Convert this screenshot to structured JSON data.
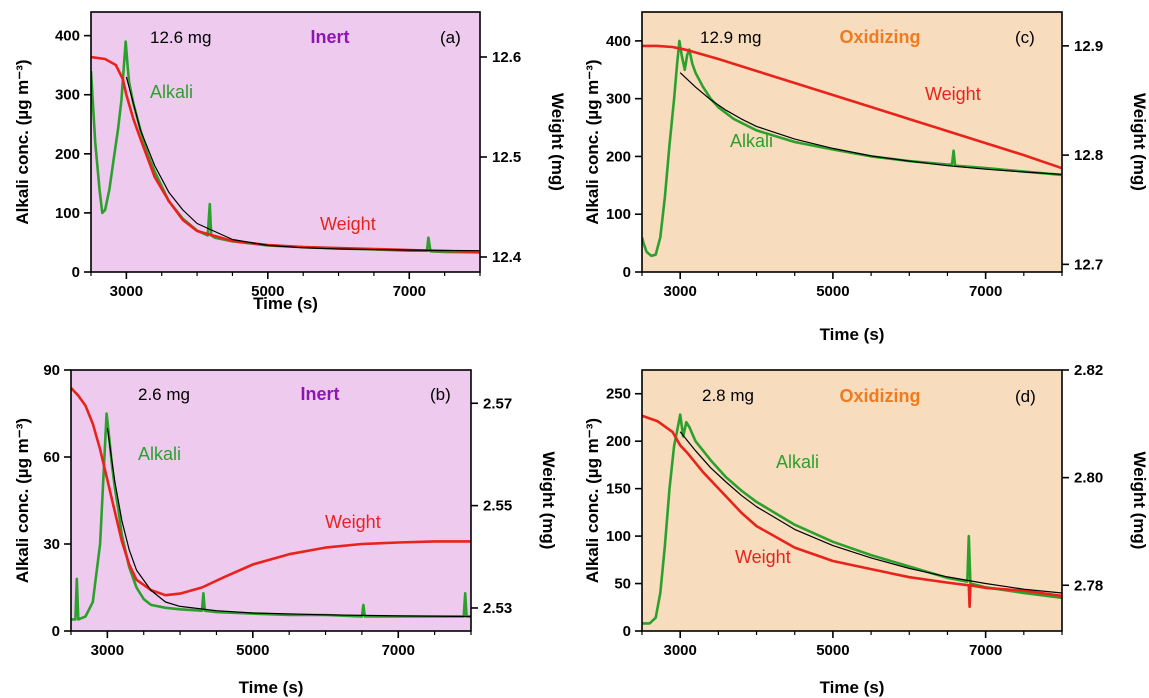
{
  "colors": {
    "inert_bg": "#eecbee",
    "oxidizing_bg": "#f8dcbe",
    "inert_text": "#8e15b3",
    "oxidizing_text": "#f07b1f",
    "alkali": "#2ca02c",
    "weight": "#e8231c",
    "fit": "#000000"
  },
  "chart_data": [
    {
      "type": "line",
      "panel": "(a)",
      "mass": "12.6 mg",
      "atmosphere": "Inert",
      "xlabel": "Time (s)",
      "ylabel": "Alkali conc. (µg m⁻³)",
      "y2label": "Weight (mg)",
      "xlim": [
        2500,
        8000
      ],
      "ylim": [
        0,
        440
      ],
      "y2lim": [
        12.385,
        12.645
      ],
      "xticks": [
        3000,
        5000,
        7000
      ],
      "yticks": [
        0,
        100,
        200,
        300,
        400
      ],
      "y2ticks": [
        12.4,
        12.5,
        12.6
      ],
      "series": [
        {
          "name": "Alkali",
          "axis": "left",
          "kind": "alkali",
          "x": [
            2500,
            2560,
            2620,
            2660,
            2700,
            2760,
            2820,
            2880,
            2930,
            2960,
            2990,
            3020,
            3040,
            3100,
            3200,
            3300,
            3400,
            3500,
            3600,
            3800,
            4000,
            4150,
            4180,
            4200,
            4250,
            4500,
            5000,
            5500,
            6000,
            6500,
            7000,
            7250,
            7270,
            7300,
            7500,
            8000
          ],
          "y": [
            340,
            220,
            140,
            100,
            105,
            140,
            190,
            240,
            290,
            340,
            390,
            345,
            320,
            285,
            240,
            200,
            170,
            145,
            120,
            90,
            70,
            62,
            115,
            62,
            58,
            52,
            45,
            42,
            40,
            38,
            36,
            36,
            58,
            35,
            34,
            33
          ]
        },
        {
          "name": "Weight",
          "axis": "right",
          "kind": "weight",
          "x": [
            2500,
            2700,
            2850,
            2950,
            3000,
            3100,
            3200,
            3400,
            3600,
            3800,
            4000,
            4500,
            5000,
            5500,
            6000,
            6500,
            7000,
            7500,
            8000
          ],
          "y": [
            12.6,
            12.598,
            12.592,
            12.578,
            12.562,
            12.538,
            12.518,
            12.48,
            12.456,
            12.437,
            12.426,
            12.416,
            12.412,
            12.41,
            12.409,
            12.408,
            12.407,
            12.406,
            12.405
          ]
        },
        {
          "axis": "left",
          "kind": "fit",
          "x": [
            3000,
            3200,
            3400,
            3600,
            3800,
            4000,
            4500,
            5000,
            5500,
            6000,
            7000,
            8000
          ],
          "y": [
            330,
            240,
            180,
            135,
            105,
            82,
            55,
            45,
            41,
            39,
            37,
            36
          ]
        }
      ]
    },
    {
      "type": "line",
      "panel": "(b)",
      "mass": "2.6 mg",
      "atmosphere": "Inert",
      "xlabel": "Time (s)",
      "ylabel": "Alkali conc. (µg m⁻³)",
      "y2label": "Weight (mg)",
      "xlim": [
        2500,
        8000
      ],
      "ylim": [
        0,
        90
      ],
      "y2lim": [
        2.5255,
        2.5765
      ],
      "xticks": [
        3000,
        5000,
        7000
      ],
      "yticks": [
        0,
        30,
        60,
        90
      ],
      "y2ticks": [
        2.53,
        2.55,
        2.57
      ],
      "series": [
        {
          "name": "Alkali",
          "axis": "left",
          "kind": "alkali",
          "x": [
            2500,
            2560,
            2580,
            2600,
            2700,
            2800,
            2900,
            2950,
            2990,
            3020,
            3060,
            3100,
            3150,
            3200,
            3300,
            3400,
            3500,
            3600,
            3800,
            4000,
            4300,
            4320,
            4340,
            4500,
            5000,
            5500,
            6000,
            6500,
            6520,
            6540,
            7000,
            7500,
            7900,
            7920,
            7940,
            8000
          ],
          "y": [
            4,
            4,
            18,
            4,
            5,
            10,
            30,
            55,
            75,
            68,
            58,
            50,
            42,
            33,
            22,
            15,
            11,
            9,
            8,
            7.5,
            7,
            13,
            7,
            6.5,
            6,
            5.5,
            5.5,
            5,
            9,
            5,
            5,
            5,
            5,
            13,
            5,
            5
          ]
        },
        {
          "name": "Weight",
          "axis": "right",
          "kind": "weight",
          "x": [
            2500,
            2600,
            2700,
            2800,
            2900,
            3000,
            3100,
            3200,
            3300,
            3400,
            3600,
            3800,
            4000,
            4300,
            4600,
            5000,
            5500,
            6000,
            6500,
            7000,
            7500,
            8000
          ],
          "y": [
            2.573,
            2.5715,
            2.5695,
            2.566,
            2.561,
            2.555,
            2.549,
            2.543,
            2.5385,
            2.5355,
            2.5335,
            2.5325,
            2.5328,
            2.534,
            2.536,
            2.5385,
            2.5405,
            2.5418,
            2.5425,
            2.5428,
            2.543,
            2.543
          ]
        },
        {
          "axis": "left",
          "kind": "fit",
          "x": [
            3000,
            3100,
            3200,
            3300,
            3400,
            3600,
            3800,
            4000,
            4500,
            5000,
            6000,
            7000,
            8000
          ],
          "y": [
            70,
            52,
            38,
            28,
            21,
            14,
            10,
            8.5,
            7,
            6.2,
            5.6,
            5.2,
            5
          ]
        }
      ]
    },
    {
      "type": "line",
      "panel": "(c)",
      "mass": "12.9 mg",
      "atmosphere": "Oxidizing",
      "xlabel": "Time (s)",
      "ylabel": "Alkali conc. (µg m⁻³)",
      "y2label": "Weight (mg)",
      "xlim": [
        2500,
        8000
      ],
      "ylim": [
        0,
        450
      ],
      "y2lim": [
        12.693,
        12.931
      ],
      "xticks": [
        3000,
        5000,
        7000
      ],
      "yticks": [
        0,
        100,
        200,
        300,
        400
      ],
      "y2ticks": [
        12.7,
        12.8,
        12.9
      ],
      "series": [
        {
          "name": "Alkali",
          "axis": "left",
          "kind": "alkali",
          "x": [
            2500,
            2520,
            2560,
            2620,
            2680,
            2740,
            2800,
            2860,
            2920,
            2960,
            2990,
            3020,
            3060,
            3090,
            3120,
            3160,
            3200,
            3300,
            3400,
            3500,
            3700,
            4000,
            4500,
            5000,
            5500,
            6000,
            6500,
            6560,
            6580,
            6600,
            7000,
            7500,
            8000
          ],
          "y": [
            60,
            50,
            35,
            28,
            30,
            60,
            130,
            220,
            300,
            360,
            400,
            375,
            350,
            375,
            385,
            360,
            345,
            320,
            300,
            285,
            265,
            245,
            225,
            212,
            200,
            192,
            186,
            186,
            210,
            184,
            180,
            174,
            168
          ]
        },
        {
          "name": "Weight",
          "axis": "right",
          "kind": "weight",
          "x": [
            2500,
            2700,
            2900,
            3100,
            3300,
            3500,
            4000,
            4500,
            5000,
            5500,
            6000,
            6500,
            7000,
            7500,
            8000
          ],
          "y": [
            12.9,
            12.9,
            12.899,
            12.896,
            12.892,
            12.888,
            12.877,
            12.866,
            12.855,
            12.844,
            12.833,
            12.822,
            12.811,
            12.8,
            12.788
          ]
        },
        {
          "axis": "left",
          "kind": "fit",
          "x": [
            3000,
            3200,
            3400,
            3600,
            3800,
            4000,
            4500,
            5000,
            5500,
            6000,
            6500,
            7000,
            7500,
            8000
          ],
          "y": [
            345,
            320,
            298,
            280,
            265,
            252,
            230,
            214,
            201,
            192,
            184,
            178,
            173,
            169
          ]
        }
      ]
    },
    {
      "type": "line",
      "panel": "(d)",
      "mass": "2.8 mg",
      "atmosphere": "Oxidizing",
      "xlabel": "Time (s)",
      "ylabel": "Alkali conc. (µg m⁻³)",
      "y2label": "Weight (mg)",
      "xlim": [
        2500,
        8000
      ],
      "ylim": [
        0,
        275
      ],
      "y2lim": [
        2.7715,
        2.82
      ],
      "xticks": [
        3000,
        5000,
        7000
      ],
      "yticks": [
        0,
        50,
        100,
        150,
        200,
        250
      ],
      "y2ticks": [
        2.78,
        2.8,
        2.82
      ],
      "series": [
        {
          "name": "Alkali",
          "axis": "left",
          "kind": "alkali",
          "x": [
            2500,
            2600,
            2680,
            2740,
            2800,
            2860,
            2920,
            2970,
            3000,
            3040,
            3080,
            3120,
            3200,
            3400,
            3600,
            3800,
            4000,
            4500,
            5000,
            5500,
            6000,
            6500,
            6760,
            6780,
            6800,
            7000,
            7500,
            8000
          ],
          "y": [
            8,
            8,
            14,
            40,
            90,
            150,
            195,
            215,
            228,
            205,
            220,
            215,
            200,
            180,
            162,
            148,
            136,
            112,
            94,
            80,
            68,
            56,
            52,
            100,
            50,
            46,
            40,
            35
          ]
        },
        {
          "name": "Weight",
          "axis": "right",
          "kind": "weight",
          "x": [
            2500,
            2700,
            2900,
            3000,
            3100,
            3300,
            3500,
            3800,
            4000,
            4500,
            5000,
            5500,
            6000,
            6500,
            6780,
            6790,
            6800,
            7000,
            7500,
            8000
          ],
          "y": [
            2.8115,
            2.8105,
            2.8085,
            2.806,
            2.8045,
            2.801,
            2.798,
            2.7935,
            2.791,
            2.787,
            2.7845,
            2.783,
            2.7815,
            2.7805,
            2.78,
            2.776,
            2.78,
            2.7795,
            2.779,
            2.778
          ]
        },
        {
          "axis": "left",
          "kind": "fit",
          "x": [
            3000,
            3200,
            3400,
            3600,
            3800,
            4000,
            4500,
            5000,
            5500,
            6000,
            6500,
            7000,
            7500,
            8000
          ],
          "y": [
            210,
            190,
            172,
            157,
            143,
            131,
            107,
            90,
            77,
            66,
            57,
            50,
            44,
            40
          ]
        }
      ]
    }
  ]
}
